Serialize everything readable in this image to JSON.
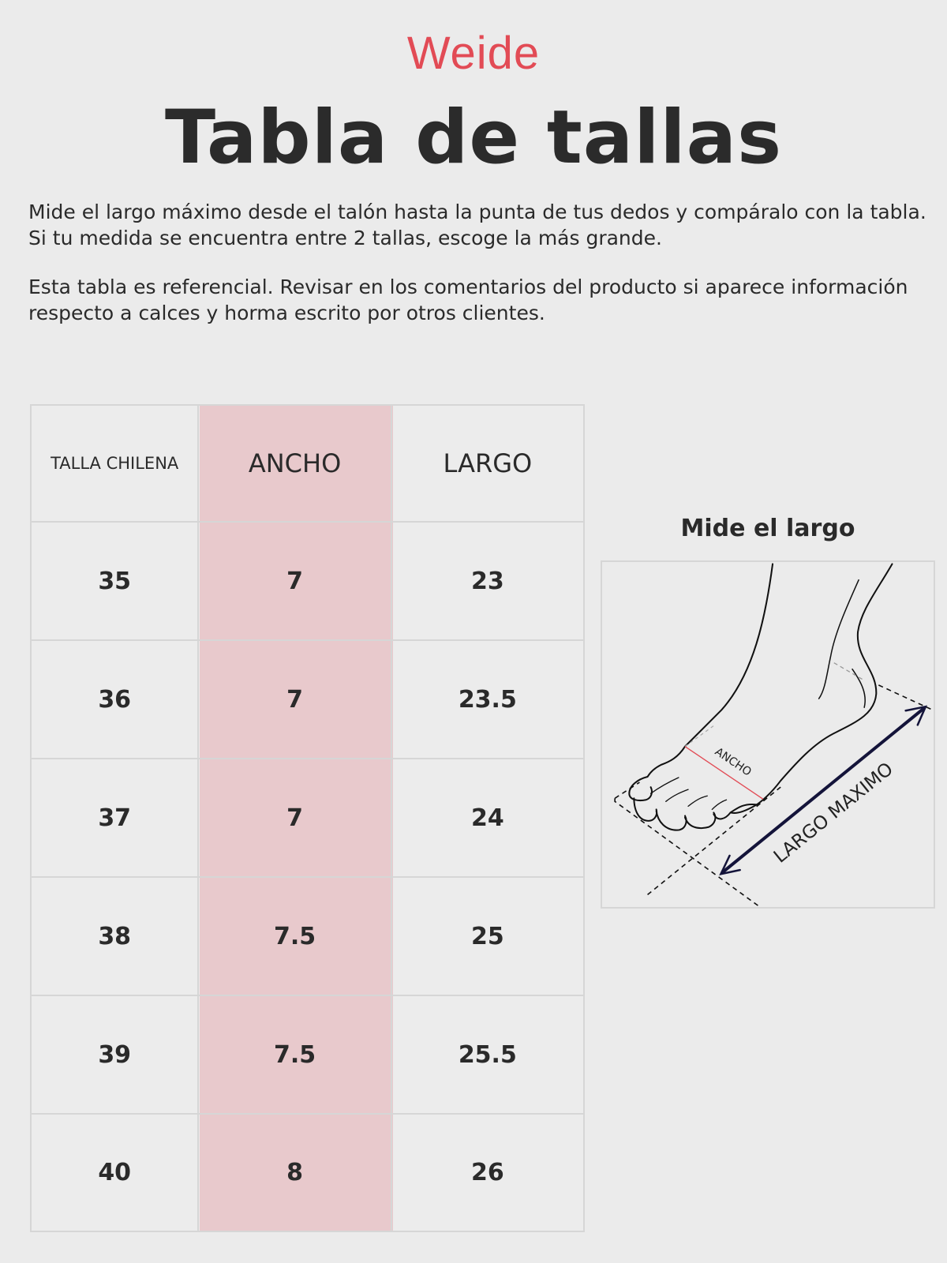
{
  "brand": {
    "logo_text": "Weide",
    "color": "#e24b55"
  },
  "header": {
    "title": "Tabla de tallas"
  },
  "instructions": [
    "Mide el largo máximo desde el talón hasta la punta de tus dedos y compáralo con la tabla. Si tu medida se encuentra entre 2 tallas, escoge la más grande.",
    "Esta tabla es referencial. Revisar en los comentarios del producto si aparece información respecto a calces y horma escrito por otros clientes."
  ],
  "size_table": {
    "highlight_color": "#e8c9cc",
    "headers": [
      "TALLA CHILENA",
      "ANCHO",
      "LARGO"
    ],
    "rows": [
      [
        "35",
        "7",
        "23"
      ],
      [
        "36",
        "7",
        "23.5"
      ],
      [
        "37",
        "7",
        "24"
      ],
      [
        "38",
        "7.5",
        "25"
      ],
      [
        "39",
        "7.5",
        "25.5"
      ],
      [
        "40",
        "8",
        "26"
      ]
    ]
  },
  "diagram": {
    "title": "Mide el largo",
    "width_label": "ANCHO",
    "length_label": "LARGO MAXIMO"
  }
}
